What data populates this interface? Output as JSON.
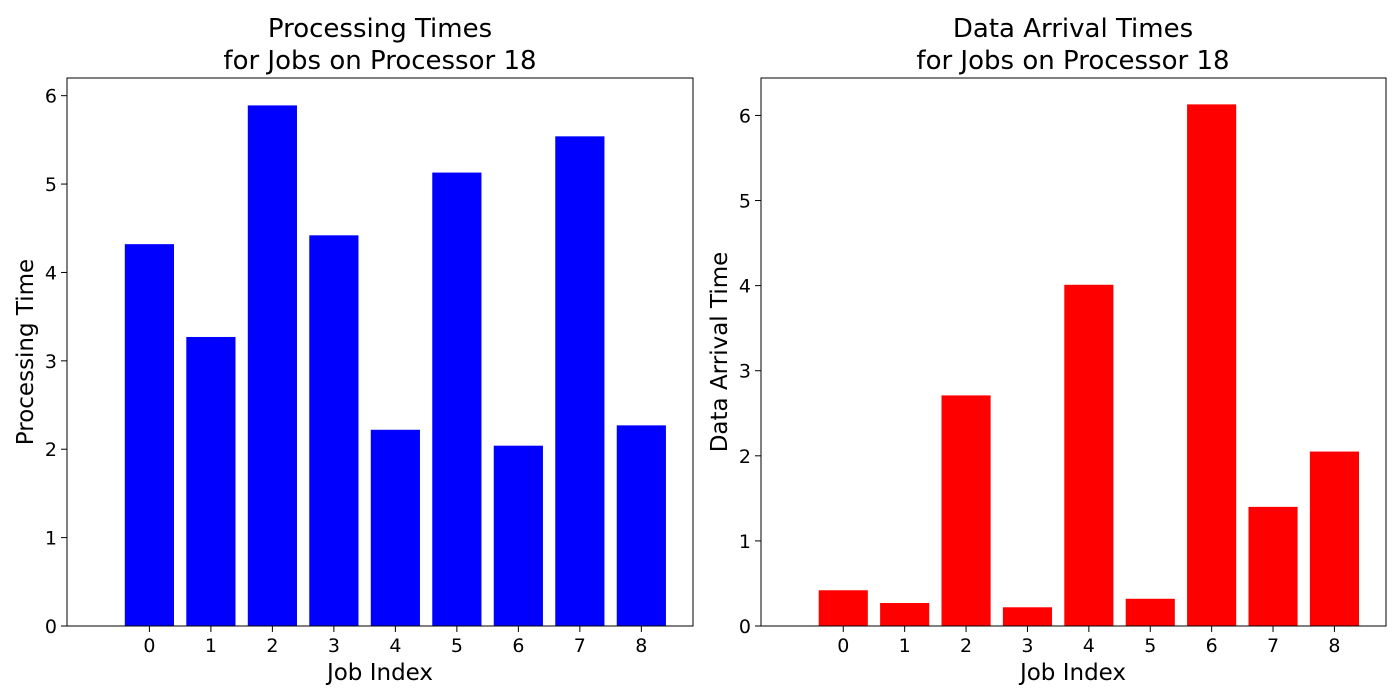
{
  "chart_data": [
    {
      "type": "bar",
      "title": [
        "Processing Times",
        "for Jobs on Processor 18"
      ],
      "xlabel": "Job Index",
      "ylabel": "Processing Time",
      "categories": [
        "0",
        "1",
        "2",
        "3",
        "4",
        "5",
        "6",
        "7",
        "8"
      ],
      "values": [
        4.32,
        3.27,
        5.89,
        4.42,
        2.22,
        5.13,
        2.04,
        5.54,
        2.27
      ],
      "ylim": [
        0,
        6.2
      ],
      "yticks": [
        0,
        1,
        2,
        3,
        4,
        5,
        6
      ],
      "color": "#0000ff",
      "grid": false,
      "legend": false
    },
    {
      "type": "bar",
      "title": [
        "Data Arrival Times",
        "for Jobs on Processor 18"
      ],
      "xlabel": "Job Index",
      "ylabel": "Data Arrival Time",
      "categories": [
        "0",
        "1",
        "2",
        "3",
        "4",
        "5",
        "6",
        "7",
        "8"
      ],
      "values": [
        0.42,
        0.27,
        2.71,
        0.22,
        4.01,
        0.32,
        6.13,
        1.4,
        2.05
      ],
      "ylim": [
        0,
        6.44
      ],
      "yticks": [
        0,
        1,
        2,
        3,
        4,
        5,
        6
      ],
      "color": "#ff0000",
      "grid": false,
      "legend": false
    }
  ]
}
